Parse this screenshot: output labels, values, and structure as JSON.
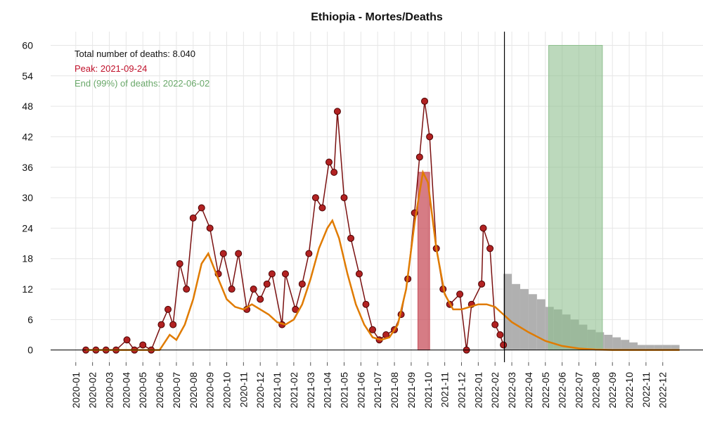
{
  "chart_data": {
    "type": "line",
    "title": "Ethiopia - Mortes/Deaths",
    "annotations": [
      {
        "text": "Total number of deaths: 8.040",
        "color": "#111111"
      },
      {
        "text": "Peak: 2021-09-24",
        "color": "#c0102a"
      },
      {
        "text": "End (99%) of deaths: 2022-06-02",
        "color": "#6aa86a"
      }
    ],
    "xlim": [
      -1.5,
      37.4
    ],
    "ylim": [
      -2.4,
      62.7
    ],
    "xticks": [
      {
        "value": 0,
        "label": "2020-01"
      },
      {
        "value": 1,
        "label": "2020-02"
      },
      {
        "value": 2,
        "label": "2020-03"
      },
      {
        "value": 3,
        "label": "2020-04"
      },
      {
        "value": 4,
        "label": "2020-05"
      },
      {
        "value": 5,
        "label": "2020-06"
      },
      {
        "value": 6,
        "label": "2020-07"
      },
      {
        "value": 7,
        "label": "2020-08"
      },
      {
        "value": 8,
        "label": "2020-09"
      },
      {
        "value": 9,
        "label": "2020-10"
      },
      {
        "value": 10,
        "label": "2020-11"
      },
      {
        "value": 11,
        "label": "2020-12"
      },
      {
        "value": 12,
        "label": "2021-01"
      },
      {
        "value": 13,
        "label": "2021-02"
      },
      {
        "value": 14,
        "label": "2021-03"
      },
      {
        "value": 15,
        "label": "2021-04"
      },
      {
        "value": 16,
        "label": "2021-05"
      },
      {
        "value": 17,
        "label": "2021-06"
      },
      {
        "value": 18,
        "label": "2021-07"
      },
      {
        "value": 19,
        "label": "2021-08"
      },
      {
        "value": 20,
        "label": "2021-09"
      },
      {
        "value": 21,
        "label": "2021-10"
      },
      {
        "value": 22,
        "label": "2021-11"
      },
      {
        "value": 23,
        "label": "2021-12"
      },
      {
        "value": 24,
        "label": "2022-01"
      },
      {
        "value": 25,
        "label": "2022-02"
      },
      {
        "value": 26,
        "label": "2022-03"
      },
      {
        "value": 27,
        "label": "2022-04"
      },
      {
        "value": 28,
        "label": "2022-05"
      },
      {
        "value": 29,
        "label": "2022-06"
      },
      {
        "value": 30,
        "label": "2022-07"
      },
      {
        "value": 31,
        "label": "2022-08"
      },
      {
        "value": 32,
        "label": "2022-09"
      },
      {
        "value": 33,
        "label": "2022-10"
      },
      {
        "value": 34,
        "label": "2022-11"
      },
      {
        "value": 35,
        "label": "2022-12"
      }
    ],
    "yticks": [
      0,
      6,
      12,
      18,
      24,
      30,
      36,
      42,
      48,
      54,
      60
    ],
    "grid": true,
    "vline": 25.56,
    "peak_band": {
      "color": "#c8505c",
      "x": [
        20.4,
        21.1
      ],
      "value": 35
    },
    "end_band": {
      "color": "#8fc08f",
      "x": [
        28.2,
        31.4
      ],
      "value": 60
    },
    "series": [
      {
        "style": "bars",
        "color": "#b0b0b0",
        "x": [
          25.75,
          26.25,
          26.75,
          27.25,
          27.75,
          28.25,
          28.75,
          29.25,
          29.75,
          30.25,
          30.75,
          31.25,
          31.75,
          32.25,
          32.75,
          33.25,
          33.75,
          34.25,
          34.75,
          35.25,
          35.75
        ],
        "values": [
          15,
          13,
          12,
          11,
          10,
          8.5,
          8,
          7,
          6,
          5,
          4,
          3.5,
          3,
          2.5,
          2,
          1.5,
          1,
          1,
          1,
          1,
          1
        ]
      },
      {
        "style": "points",
        "color": "#b22222",
        "line_color": "#7a1010",
        "x": [
          0.6,
          1.2,
          1.8,
          2.4,
          3.05,
          3.5,
          4.0,
          4.5,
          5.1,
          5.5,
          5.8,
          6.2,
          6.6,
          7.0,
          7.5,
          8.0,
          8.5,
          8.8,
          9.3,
          9.7,
          10.2,
          10.6,
          11.0,
          11.4,
          11.7,
          12.3,
          12.5,
          13.1,
          13.5,
          13.9,
          14.3,
          14.7,
          15.1,
          15.4,
          15.6,
          16.0,
          16.4,
          16.9,
          17.3,
          17.7,
          18.1,
          18.5,
          19.0,
          19.4,
          19.8,
          20.2,
          20.5,
          20.8,
          21.1,
          21.5,
          21.9,
          22.3,
          22.9,
          23.3,
          23.6,
          24.2,
          24.3,
          24.7,
          25.0,
          25.3,
          25.5
        ],
        "values": [
          0,
          0,
          0,
          0,
          2,
          0,
          1,
          0,
          5,
          8,
          5,
          17,
          12,
          26,
          28,
          24,
          15,
          19,
          12,
          19,
          8,
          12,
          10,
          13,
          15,
          5,
          15,
          8,
          13,
          19,
          30,
          28,
          37,
          35,
          47,
          30,
          22,
          15,
          9,
          4,
          2,
          3,
          4,
          7,
          14,
          27,
          38,
          49,
          42,
          20,
          12,
          9,
          11,
          0,
          9,
          13,
          24,
          20,
          5,
          3,
          1
        ]
      },
      {
        "style": "line",
        "color": "#e07b00",
        "x": [
          0.6,
          5.0,
          5.6,
          6.0,
          6.5,
          7.0,
          7.5,
          7.9,
          8.5,
          9.0,
          9.5,
          10.0,
          10.5,
          11.0,
          11.5,
          12.0,
          12.5,
          13.0,
          13.5,
          14.0,
          14.5,
          15.0,
          15.3,
          15.7,
          16.2,
          16.7,
          17.2,
          17.7,
          18.2,
          18.7,
          19.2,
          19.7,
          20.2,
          20.7,
          21.0,
          21.5,
          22.0,
          22.5,
          23.0,
          23.5,
          24.0,
          24.5,
          25.0,
          25.5,
          26.0,
          27.0,
          28.0,
          29.0,
          30.0,
          31.0,
          32.0,
          36.0
        ],
        "values": [
          0,
          0,
          3,
          2,
          5,
          10,
          17,
          19,
          14,
          10,
          8.5,
          8,
          9,
          8,
          7,
          5.5,
          5,
          6,
          9,
          14,
          20,
          24,
          25.5,
          22,
          15,
          9,
          5,
          2.5,
          2,
          2.5,
          5,
          12,
          25,
          35,
          33,
          20,
          11,
          8,
          8,
          8.5,
          9,
          9,
          8.5,
          7,
          5.5,
          3.5,
          1.8,
          0.8,
          0.3,
          0.1,
          0,
          0
        ]
      }
    ]
  }
}
